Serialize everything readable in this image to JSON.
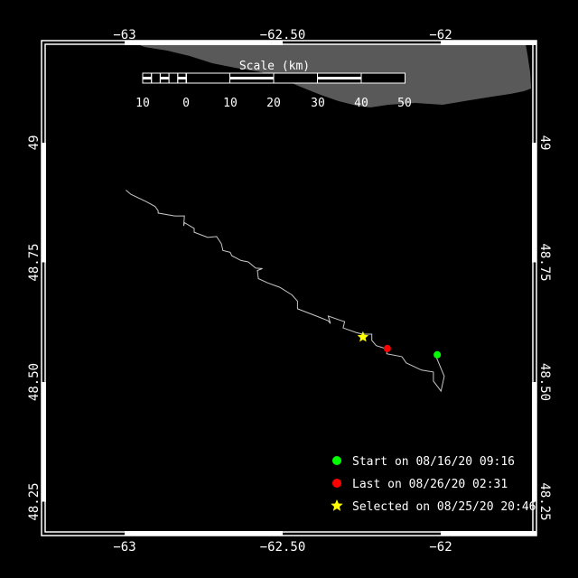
{
  "map": {
    "colors": {
      "background": "#000000",
      "land": "#595959",
      "track": "#c8c8c8",
      "frame": "#ffffff",
      "start": "#00ff00",
      "last": "#ff0000",
      "selected": "#ffff00"
    },
    "lon_ticks": [
      {
        "value": -63,
        "label": "−63"
      },
      {
        "value": -62.5,
        "label": "−62.50"
      },
      {
        "value": -62,
        "label": "−62"
      }
    ],
    "lat_ticks": [
      {
        "value": 49,
        "label": "49"
      },
      {
        "value": 48.75,
        "label": "48.75"
      },
      {
        "value": 48.5,
        "label": "48.50"
      },
      {
        "value": 48.25,
        "label": "48.25"
      }
    ],
    "scale": {
      "title": "Scale (km)",
      "labels": [
        "10",
        "0",
        "10",
        "20",
        "30",
        "40",
        "50"
      ]
    },
    "track": [
      [
        -62.996,
        48.901
      ],
      [
        -62.98,
        48.892
      ],
      [
        -62.932,
        48.877
      ],
      [
        -62.904,
        48.867
      ],
      [
        -62.894,
        48.858
      ],
      [
        -62.894,
        48.853
      ],
      [
        -62.842,
        48.847
      ],
      [
        -62.811,
        48.847
      ],
      [
        -62.813,
        48.826
      ],
      [
        -62.811,
        48.833
      ],
      [
        -62.78,
        48.821
      ],
      [
        -62.78,
        48.813
      ],
      [
        -62.737,
        48.802
      ],
      [
        -62.709,
        48.804
      ],
      [
        -62.694,
        48.789
      ],
      [
        -62.689,
        48.775
      ],
      [
        -62.666,
        48.771
      ],
      [
        -62.661,
        48.764
      ],
      [
        -62.632,
        48.754
      ],
      [
        -62.609,
        48.751
      ],
      [
        -62.585,
        48.738
      ],
      [
        -62.564,
        48.737
      ],
      [
        -62.58,
        48.733
      ],
      [
        -62.577,
        48.716
      ],
      [
        -62.547,
        48.707
      ],
      [
        -62.509,
        48.698
      ],
      [
        -62.471,
        48.682
      ],
      [
        -62.453,
        48.669
      ],
      [
        -62.453,
        48.653
      ],
      [
        -62.394,
        48.638
      ],
      [
        -62.356,
        48.628
      ],
      [
        -62.349,
        48.622
      ],
      [
        -62.356,
        48.638
      ],
      [
        -62.313,
        48.628
      ],
      [
        -62.304,
        48.626
      ],
      [
        -62.309,
        48.613
      ],
      [
        -62.266,
        48.603
      ],
      [
        -62.247,
        48.6
      ],
      [
        -62.218,
        48.6
      ],
      [
        -62.218,
        48.587
      ],
      [
        -62.204,
        48.576
      ],
      [
        -62.171,
        48.569
      ],
      [
        -62.171,
        48.559
      ],
      [
        -62.123,
        48.553
      ],
      [
        -62.109,
        48.54
      ],
      [
        -62.061,
        48.525
      ],
      [
        -62.023,
        48.521
      ],
      [
        -62.023,
        48.502
      ],
      [
        -61.999,
        48.481
      ],
      [
        -61.989,
        48.512
      ],
      [
        -62.013,
        48.55
      ],
      [
        -62.011,
        48.557
      ]
    ],
    "markers": {
      "start": {
        "lon": -62.011,
        "lat": 48.557
      },
      "last": {
        "lon": -62.169,
        "lat": 48.57
      },
      "selected": {
        "lon": -62.246,
        "lat": 48.594
      }
    },
    "legend": [
      {
        "symbol": "circle",
        "color": "#00ff00",
        "label": "Start on 08/16/20 09:16"
      },
      {
        "symbol": "circle",
        "color": "#ff0000",
        "label": "Last on 08/26/20 02:31"
      },
      {
        "symbol": "star",
        "color": "#ffff00",
        "label": "Selected on 08/25/20 20:46"
      }
    ]
  }
}
